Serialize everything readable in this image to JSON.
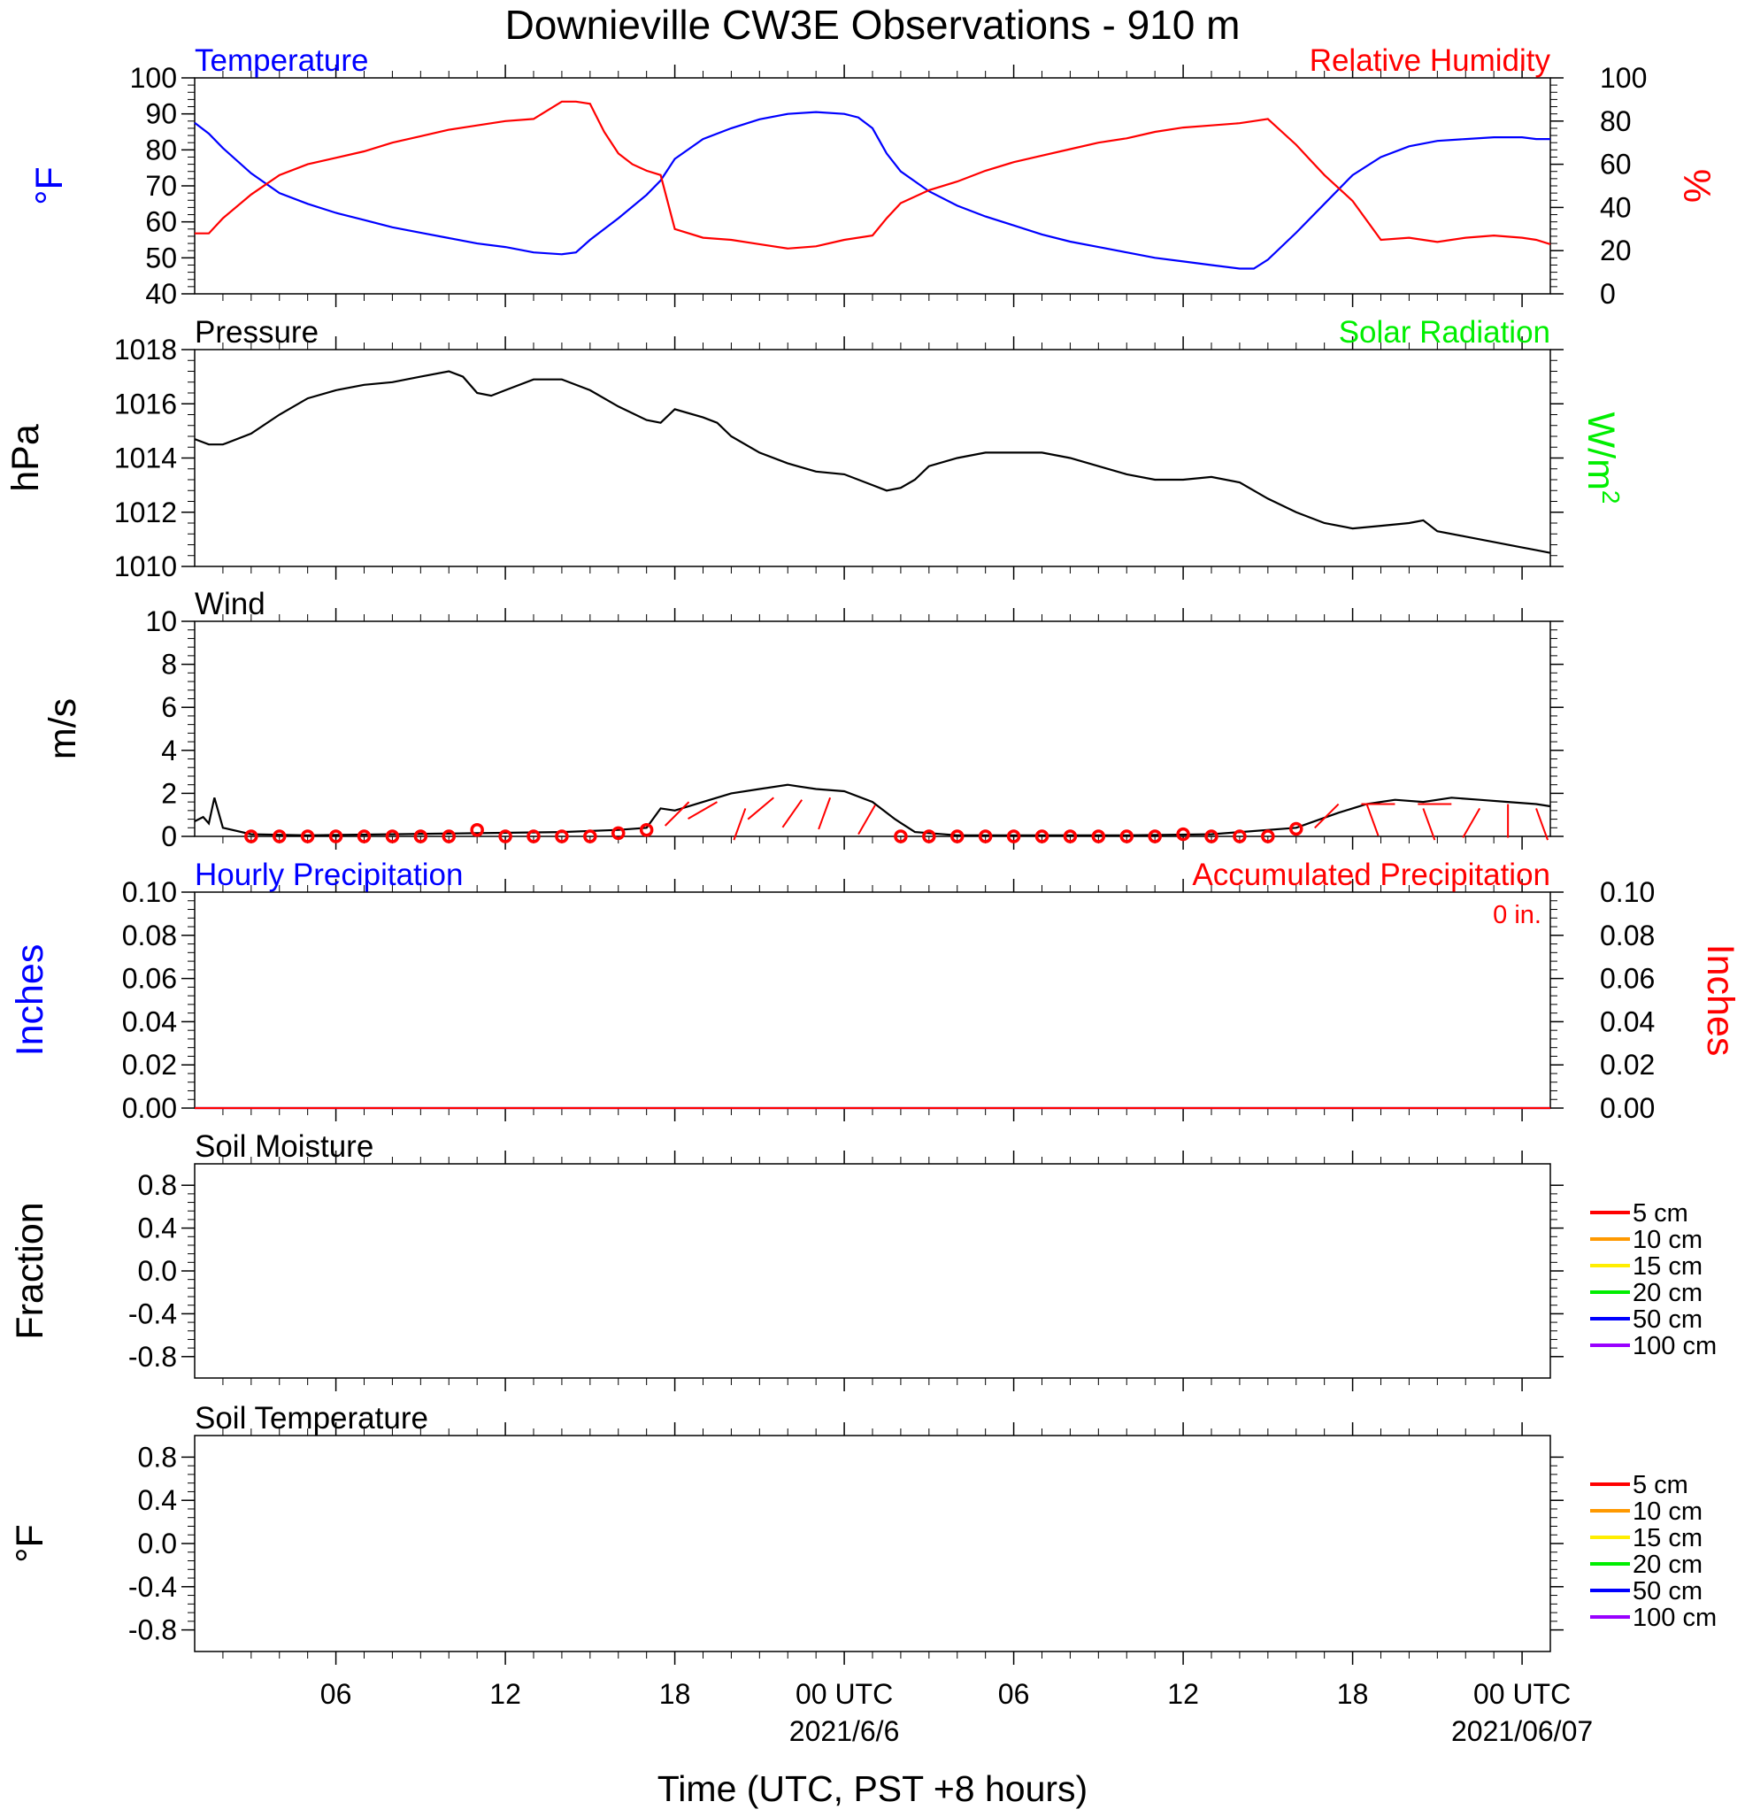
{
  "title": "Downieville CW3E Observations - 910 m",
  "x_axis": {
    "label": "Time (UTC, PST +8 hours)",
    "ticks": [
      {
        "hour": 6,
        "label": "06",
        "date": ""
      },
      {
        "hour": 12,
        "label": "12",
        "date": ""
      },
      {
        "hour": 18,
        "label": "18",
        "date": ""
      },
      {
        "hour": 24,
        "label": "00 UTC",
        "date": "2021/6/6"
      },
      {
        "hour": 30,
        "label": "06",
        "date": ""
      },
      {
        "hour": 36,
        "label": "12",
        "date": ""
      },
      {
        "hour": 42,
        "label": "18",
        "date": ""
      },
      {
        "hour": 48,
        "label": "00 UTC",
        "date": "2021/06/07"
      }
    ]
  },
  "chart_data": [
    {
      "type": "line",
      "left_title": "Temperature",
      "right_title": "Relative Humidity",
      "ylabel": "°F",
      "ylabel_right": "%",
      "ylim": [
        40,
        100
      ],
      "ylim_right": [
        0,
        100
      ],
      "yticks": [
        40,
        50,
        60,
        70,
        80,
        90,
        100
      ],
      "yticks_right": [
        0,
        20,
        40,
        60,
        80,
        100
      ],
      "x_range": [
        1,
        49
      ],
      "series": [
        {
          "name": "Temperature",
          "color": "#0000ff",
          "axis": "left",
          "x": [
            1.0,
            1.5,
            2.0,
            3.0,
            4.0,
            5.0,
            6.0,
            7.0,
            8.0,
            9.0,
            10.0,
            11.0,
            12.0,
            13.0,
            14.0,
            14.5,
            15.0,
            16.0,
            17.0,
            17.5,
            18.0,
            19.0,
            20.0,
            21.0,
            22.0,
            23.0,
            24.0,
            24.5,
            25.0,
            25.5,
            26.0,
            27.0,
            28.0,
            29.0,
            30.0,
            31.0,
            32.0,
            33.0,
            34.0,
            35.0,
            36.0,
            37.0,
            38.0,
            38.5,
            39.0,
            40.0,
            41.0,
            42.0,
            43.0,
            44.0,
            45.0,
            46.0,
            47.0,
            48.0,
            48.5,
            49.0
          ],
          "y": [
            87.5,
            84.5,
            80.5,
            73.5,
            68.0,
            65.0,
            62.5,
            60.5,
            58.5,
            57.0,
            55.5,
            54.0,
            53.0,
            51.5,
            51.0,
            51.5,
            55.0,
            61.0,
            67.5,
            71.5,
            77.5,
            83.0,
            86.0,
            88.5,
            90.0,
            90.5,
            90.0,
            89.0,
            86.0,
            79.0,
            74.0,
            68.5,
            64.5,
            61.5,
            59.0,
            56.5,
            54.5,
            53.0,
            51.5,
            50.0,
            49.0,
            48.0,
            47.0,
            47.0,
            49.5,
            57.0,
            65.0,
            73.0,
            78.0,
            81.0,
            82.5,
            83.0,
            83.5,
            83.5,
            83.0,
            83.0
          ]
        },
        {
          "name": "Relative Humidity",
          "color": "#ff0000",
          "axis": "right",
          "x": [
            1.0,
            1.5,
            2.0,
            3.0,
            4.0,
            5.0,
            6.0,
            7.0,
            8.0,
            9.0,
            10.0,
            11.0,
            12.0,
            13.0,
            14.0,
            14.5,
            15.0,
            15.5,
            16.0,
            16.5,
            17.0,
            17.5,
            18.0,
            19.0,
            20.0,
            21.0,
            22.0,
            23.0,
            24.0,
            25.0,
            25.5,
            26.0,
            27.0,
            28.0,
            29.0,
            30.0,
            31.0,
            32.0,
            33.0,
            34.0,
            35.0,
            36.0,
            37.0,
            38.0,
            38.5,
            39.0,
            40.0,
            40.5,
            41.0,
            42.0,
            43.0,
            44.0,
            45.0,
            46.0,
            47.0,
            48.0,
            48.5,
            49.0
          ],
          "y": [
            28,
            28,
            35,
            46,
            55,
            60,
            63,
            66,
            70,
            73,
            76,
            78,
            80,
            81,
            89,
            89,
            88,
            75,
            65,
            60,
            57,
            55,
            30,
            26,
            25,
            23,
            21,
            22,
            25,
            27,
            35,
            42,
            48,
            52,
            57,
            61,
            64,
            67,
            70,
            72,
            75,
            77,
            78,
            79,
            80,
            81,
            69,
            62,
            55,
            43,
            25,
            26,
            24,
            26,
            27,
            26,
            25,
            23
          ]
        }
      ]
    },
    {
      "type": "line",
      "left_title": "Pressure",
      "right_title": "Solar Radiation",
      "ylabel": "hPa",
      "ylabel_right": "W/m",
      "ylabel_right_sup": "2",
      "ylim": [
        1010,
        1018
      ],
      "yticks": [
        1010,
        1012,
        1014,
        1016,
        1018
      ],
      "x_range": [
        1,
        49
      ],
      "series": [
        {
          "name": "Pressure",
          "color": "#000000",
          "axis": "left",
          "x": [
            1.0,
            1.5,
            2.0,
            3.0,
            4.0,
            5.0,
            6.0,
            7.0,
            8.0,
            9.0,
            10.0,
            10.5,
            11.0,
            11.5,
            12.0,
            13.0,
            14.0,
            15.0,
            16.0,
            17.0,
            17.5,
            18.0,
            19.0,
            19.5,
            20.0,
            21.0,
            22.0,
            23.0,
            24.0,
            25.0,
            25.5,
            26.0,
            26.5,
            27.0,
            28.0,
            29.0,
            30.0,
            31.0,
            32.0,
            33.0,
            34.0,
            35.0,
            36.0,
            37.0,
            38.0,
            39.0,
            40.0,
            41.0,
            42.0,
            43.0,
            44.0,
            44.5,
            45.0,
            46.0,
            47.0,
            48.0,
            48.5,
            49.0
          ],
          "y": [
            1014.7,
            1014.5,
            1014.5,
            1014.9,
            1015.6,
            1016.2,
            1016.5,
            1016.7,
            1016.8,
            1017.0,
            1017.2,
            1017.0,
            1016.4,
            1016.3,
            1016.5,
            1016.9,
            1016.9,
            1016.5,
            1015.9,
            1015.4,
            1015.3,
            1015.8,
            1015.5,
            1015.3,
            1014.8,
            1014.2,
            1013.8,
            1013.5,
            1013.4,
            1013.0,
            1012.8,
            1012.9,
            1013.2,
            1013.7,
            1014.0,
            1014.2,
            1014.2,
            1014.2,
            1014.0,
            1013.7,
            1013.4,
            1013.2,
            1013.2,
            1013.3,
            1013.1,
            1012.5,
            1012.0,
            1011.6,
            1011.4,
            1011.5,
            1011.6,
            1011.7,
            1011.3,
            1011.1,
            1010.9,
            1010.7,
            1010.6,
            1010.5
          ]
        }
      ]
    },
    {
      "type": "line",
      "left_title": "Wind",
      "ylabel": "m/s",
      "ylim": [
        0,
        10
      ],
      "yticks": [
        0,
        2,
        4,
        6,
        8,
        10
      ],
      "x_range": [
        1,
        49
      ],
      "series": [
        {
          "name": "Wind speed",
          "color": "#000000",
          "axis": "left",
          "x": [
            1.0,
            1.3,
            1.5,
            1.7,
            2.0,
            3.0,
            5.0,
            8.0,
            11.0,
            14.0,
            16.0,
            17.0,
            17.5,
            18.0,
            19.0,
            20.0,
            21.0,
            22.0,
            23.0,
            24.0,
            25.0,
            25.8,
            26.5,
            28.0,
            31.0,
            34.0,
            37.0,
            40.0,
            41.5,
            42.5,
            43.5,
            44.5,
            45.5,
            46.5,
            47.5,
            48.5,
            49.0
          ],
          "y": [
            0.7,
            0.9,
            0.6,
            1.8,
            0.4,
            0.1,
            0.05,
            0.1,
            0.15,
            0.2,
            0.3,
            0.4,
            1.3,
            1.2,
            1.6,
            2.0,
            2.2,
            2.4,
            2.2,
            2.1,
            1.6,
            0.8,
            0.2,
            0.05,
            0.05,
            0.05,
            0.1,
            0.4,
            1.1,
            1.5,
            1.7,
            1.6,
            1.8,
            1.7,
            1.6,
            1.5,
            1.4
          ]
        }
      ],
      "hourly_markers_hours": [
        3,
        4,
        5,
        6,
        7,
        8,
        9,
        10,
        11,
        12,
        13,
        14,
        15,
        16,
        17,
        26,
        27,
        28,
        29,
        30,
        31,
        32,
        33,
        34,
        35,
        36,
        37,
        38,
        39,
        40
      ],
      "hourly_markers_values": [
        0,
        0,
        0,
        0,
        0,
        0,
        0,
        0,
        0.3,
        0,
        0,
        0,
        0,
        0.15,
        0.3,
        0,
        0,
        0,
        0,
        0,
        0,
        0,
        0,
        0,
        0,
        0.1,
        0,
        0,
        0,
        0.35
      ],
      "barb_staffs": [
        {
          "hour": 18.5,
          "speed": 1.6,
          "dir_deg": 135
        },
        {
          "hour": 19.5,
          "speed": 1.6,
          "dir_deg": 120
        },
        {
          "hour": 20.5,
          "speed": 1.3,
          "dir_deg": 160
        },
        {
          "hour": 21.5,
          "speed": 1.8,
          "dir_deg": 130
        },
        {
          "hour": 22.5,
          "speed": 1.7,
          "dir_deg": 145
        },
        {
          "hour": 23.5,
          "speed": 1.8,
          "dir_deg": 160
        },
        {
          "hour": 24.5,
          "speed": 0.1,
          "dir_deg": 330
        },
        {
          "hour": 41.5,
          "speed": 1.5,
          "dir_deg": 135
        },
        {
          "hour": 42.5,
          "speed": 1.5,
          "dir_deg": 200
        },
        {
          "hour": 43.5,
          "speed": 1.5,
          "dir_deg": 90
        },
        {
          "hour": 44.5,
          "speed": 1.3,
          "dir_deg": 200
        },
        {
          "hour": 45.5,
          "speed": 1.5,
          "dir_deg": 90
        },
        {
          "hour": 46.5,
          "speed": 1.3,
          "dir_deg": 150
        },
        {
          "hour": 47.5,
          "speed": 1.5,
          "dir_deg": 180
        },
        {
          "hour": 48.5,
          "speed": 1.3,
          "dir_deg": 200
        }
      ]
    },
    {
      "type": "line",
      "left_title": "Hourly Precipitation",
      "right_title": "Accumulated Precipitation",
      "annotation": "0 in.",
      "ylabel": "Inches",
      "ylabel_right": "Inches",
      "ylim": [
        0,
        0.1
      ],
      "ylim_right": [
        0,
        0.1
      ],
      "yticks": [
        "0.00",
        "0.02",
        "0.04",
        "0.06",
        "0.08",
        "0.10"
      ],
      "yticks_right": [
        "0.00",
        "0.02",
        "0.04",
        "0.06",
        "0.08",
        "0.10"
      ],
      "x_range": [
        1,
        49
      ],
      "series": [
        {
          "color": "#0000ff",
          "axis": "left",
          "x": [
            1,
            49
          ],
          "y": [
            0,
            0
          ]
        },
        {
          "color": "#ff0000",
          "axis": "right",
          "x": [
            1,
            49
          ],
          "y": [
            0,
            0
          ]
        }
      ]
    },
    {
      "type": "line",
      "left_title": "Soil Moisture",
      "ylabel": "Fraction",
      "ylim": [
        -1,
        1
      ],
      "yticks": [
        "-0.8",
        "-0.4",
        "0.0",
        "0.4",
        "0.8"
      ],
      "legend": [
        {
          "label": "5 cm",
          "color": "#ff0000"
        },
        {
          "label": "10 cm",
          "color": "#ff9900"
        },
        {
          "label": "15 cm",
          "color": "#ffee00"
        },
        {
          "label": "20 cm",
          "color": "#00ee00"
        },
        {
          "label": "50 cm",
          "color": "#0000ff"
        },
        {
          "label": "100 cm",
          "color": "#9900ff"
        }
      ],
      "series": []
    },
    {
      "type": "line",
      "left_title": "Soil Temperature",
      "ylabel": "°F",
      "ylim": [
        -1,
        1
      ],
      "yticks": [
        "-0.8",
        "-0.4",
        "0.0",
        "0.4",
        "0.8"
      ],
      "legend": [
        {
          "label": "5 cm",
          "color": "#ff0000"
        },
        {
          "label": "10 cm",
          "color": "#ff9900"
        },
        {
          "label": "15 cm",
          "color": "#ffee00"
        },
        {
          "label": "20 cm",
          "color": "#00ee00"
        },
        {
          "label": "50 cm",
          "color": "#0000ff"
        },
        {
          "label": "100 cm",
          "color": "#9900ff"
        }
      ],
      "series": []
    }
  ]
}
